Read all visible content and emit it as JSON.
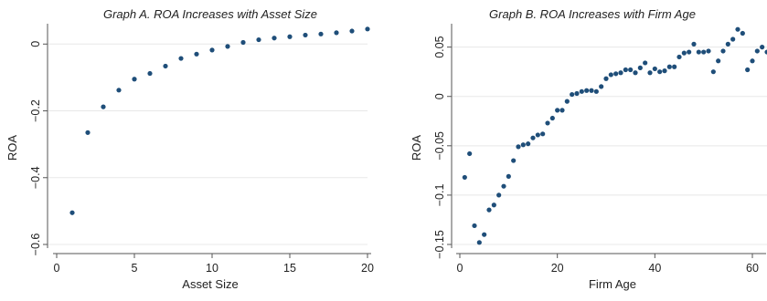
{
  "chart_data": [
    {
      "type": "scatter",
      "title": "Graph A. ROA Increases with Asset Size",
      "xlabel": "Asset Size",
      "ylabel": "ROA",
      "xlim": [
        0,
        20
      ],
      "ylim": [
        -0.6,
        0.05
      ],
      "xticks": [
        0,
        5,
        10,
        15,
        20
      ],
      "xtick_labels": [
        "0",
        "5",
        "10",
        "15",
        "20"
      ],
      "yticks": [
        0,
        -0.2,
        -0.4,
        -0.6
      ],
      "ytick_labels": [
        "0",
        "−0.2",
        "−0.4",
        "−0.6"
      ],
      "grid": true,
      "marker_color": "#1f4e79",
      "series": [
        {
          "x": [
            1,
            2,
            3,
            4,
            5,
            6,
            7,
            8,
            9,
            10,
            11,
            12,
            13,
            14,
            15,
            16,
            17,
            18,
            19,
            20
          ],
          "y": [
            -0.505,
            -0.265,
            -0.188,
            -0.138,
            -0.105,
            -0.088,
            -0.066,
            -0.043,
            -0.03,
            -0.018,
            -0.007,
            0.005,
            0.013,
            0.018,
            0.022,
            0.027,
            0.03,
            0.034,
            0.039,
            0.045
          ]
        }
      ]
    },
    {
      "type": "scatter",
      "title": "Graph B. ROA Increases with Firm Age",
      "xlabel": "Firm Age",
      "ylabel": "ROA",
      "xlim": [
        0,
        63
      ],
      "ylim": [
        -0.15,
        0.07
      ],
      "xticks": [
        0,
        20,
        40,
        60
      ],
      "xtick_labels": [
        "0",
        "20",
        "40",
        "60"
      ],
      "yticks": [
        0.05,
        0,
        -0.05,
        -0.1,
        -0.15
      ],
      "ytick_labels": [
        "0.05",
        "0",
        "−0.05",
        "−0.1",
        "−0.15"
      ],
      "grid": true,
      "marker_color": "#1f4e79",
      "series": [
        {
          "x": [
            1,
            2,
            3,
            4,
            5,
            6,
            7,
            8,
            9,
            10,
            11,
            12,
            13,
            14,
            15,
            16,
            17,
            18,
            19,
            20,
            21,
            22,
            23,
            24,
            25,
            26,
            27,
            28,
            29,
            30,
            31,
            32,
            33,
            34,
            35,
            36,
            37,
            38,
            39,
            40,
            41,
            42,
            43,
            44,
            45,
            46,
            47,
            48,
            49,
            50,
            51,
            52,
            53,
            54,
            55,
            56,
            57,
            58,
            59,
            60,
            61,
            62,
            63
          ],
          "y": [
            -0.082,
            -0.058,
            -0.131,
            -0.148,
            -0.14,
            -0.115,
            -0.11,
            -0.1,
            -0.091,
            -0.081,
            -0.065,
            -0.051,
            -0.049,
            -0.048,
            -0.042,
            -0.039,
            -0.038,
            -0.027,
            -0.022,
            -0.014,
            -0.014,
            -0.005,
            0.002,
            0.003,
            0.005,
            0.006,
            0.006,
            0.005,
            0.01,
            0.018,
            0.022,
            0.023,
            0.024,
            0.027,
            0.027,
            0.024,
            0.029,
            0.034,
            0.024,
            0.028,
            0.025,
            0.026,
            0.03,
            0.03,
            0.04,
            0.044,
            0.045,
            0.053,
            0.045,
            0.045,
            0.046,
            0.025,
            0.036,
            0.046,
            0.053,
            0.058,
            0.068,
            0.064,
            0.027,
            0.036,
            0.046,
            0.05,
            0.045
          ]
        }
      ]
    }
  ]
}
